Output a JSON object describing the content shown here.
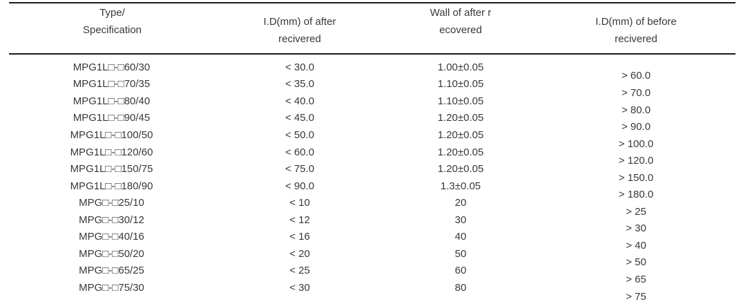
{
  "table": {
    "columns": [
      {
        "header_line1": "Type/",
        "header_line2": "Specification"
      },
      {
        "header_line1": "I.D(mm) of after",
        "header_line2": "recivered"
      },
      {
        "header_line1": "Wall of after r",
        "header_line2": "ecovered"
      },
      {
        "header_line1": "I.D(mm) of before",
        "header_line2": "recivered"
      }
    ],
    "rows": [
      {
        "type_spec": "MPG1L□-□60/30",
        "id_after": "< 30.0",
        "wall_after": "1.00±0.05"
      },
      {
        "type_spec": "MPG1L□-□70/35",
        "id_after": "< 35.0",
        "wall_after": "1.10±0.05"
      },
      {
        "type_spec": "MPG1L□-□80/40",
        "id_after": "< 40.0",
        "wall_after": "1.10±0.05"
      },
      {
        "type_spec": "MPG1L□-□90/45",
        "id_after": "< 45.0",
        "wall_after": "1.20±0.05"
      },
      {
        "type_spec": "MPG1L□-□100/50",
        "id_after": "< 50.0",
        "wall_after": "1.20±0.05"
      },
      {
        "type_spec": "MPG1L□-□120/60",
        "id_after": "< 60.0",
        "wall_after": "1.20±0.05"
      },
      {
        "type_spec": "MPG1L□-□150/75",
        "id_after": "< 75.0",
        "wall_after": "1.20±0.05"
      },
      {
        "type_spec": "MPG1L□-□180/90",
        "id_after": "< 90.0",
        "wall_after": "1.3±0.05"
      },
      {
        "type_spec": "MPG□-□25/10",
        "id_after": "< 10",
        "wall_after": "20"
      },
      {
        "type_spec": "MPG□-□30/12",
        "id_after": "< 12",
        "wall_after": "30"
      },
      {
        "type_spec": "MPG□-□40/16",
        "id_after": "< 16",
        "wall_after": "40"
      },
      {
        "type_spec": "MPG□-□50/20",
        "id_after": "< 20",
        "wall_after": "50"
      },
      {
        "type_spec": "MPG□-□65/25",
        "id_after": "< 25",
        "wall_after": "60"
      },
      {
        "type_spec": "MPG□-□75/30",
        "id_after": "< 30",
        "wall_after": "80"
      }
    ],
    "id_before_values": [
      "> 60.0",
      "> 70.0",
      "> 80.0",
      "> 90.0",
      "> 100.0",
      "> 120.0",
      "> 150.0",
      "> 180.0",
      "> 25",
      "> 30",
      "> 40",
      "> 50",
      "> 65",
      "> 75"
    ],
    "colors": {
      "text": "#383838",
      "border": "#1b1b1b",
      "background": "#ffffff"
    }
  }
}
